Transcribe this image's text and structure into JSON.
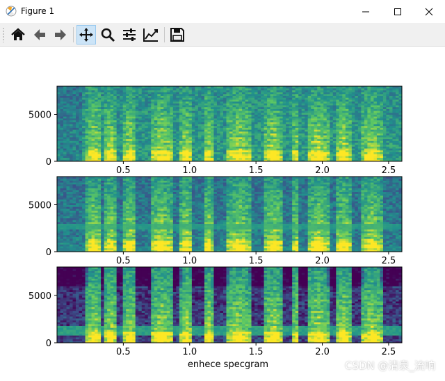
{
  "window": {
    "title": "Figure 1"
  },
  "toolbar": {
    "buttons": [
      {
        "name": "home-button",
        "icon": "home-icon"
      },
      {
        "name": "back-button",
        "icon": "arrow-left-icon"
      },
      {
        "name": "forward-button",
        "icon": "arrow-right-icon"
      },
      {
        "name": "pan-button",
        "icon": "move-icon",
        "active": true
      },
      {
        "name": "zoom-button",
        "icon": "magnifier-icon"
      },
      {
        "name": "configure-subplots-button",
        "icon": "sliders-icon"
      },
      {
        "name": "edit-axis-button",
        "icon": "line-chart-icon"
      },
      {
        "name": "save-button",
        "icon": "floppy-disk-icon"
      }
    ]
  },
  "chart_data": [
    {
      "type": "heatmap",
      "xlabel": "",
      "xlim": [
        0,
        2.6
      ],
      "ylim": [
        0,
        8000
      ],
      "xticks": [
        "0.5",
        "1.0",
        "1.5",
        "2.0",
        "2.5"
      ],
      "yticks": [
        "0",
        "5000"
      ],
      "variant": "clean"
    },
    {
      "type": "heatmap",
      "xlabel": "",
      "xlim": [
        0,
        2.6
      ],
      "ylim": [
        0,
        8000
      ],
      "xticks": [
        "0.5",
        "1.0",
        "1.5",
        "2.0",
        "2.5"
      ],
      "yticks": [
        "0",
        "5000"
      ],
      "variant": "noisy"
    },
    {
      "type": "heatmap",
      "xlabel": "enhece specgram",
      "xlim": [
        0,
        2.6
      ],
      "ylim": [
        0,
        8000
      ],
      "xticks": [
        "0.5",
        "1.0",
        "1.5",
        "2.0",
        "2.5"
      ],
      "yticks": [
        "0",
        "5000"
      ],
      "variant": "enhanced"
    }
  ],
  "colormap": [
    "#440154",
    "#3b528b",
    "#21918c",
    "#5ec962",
    "#fde725"
  ],
  "watermark": "CSDN @清泉_流响"
}
